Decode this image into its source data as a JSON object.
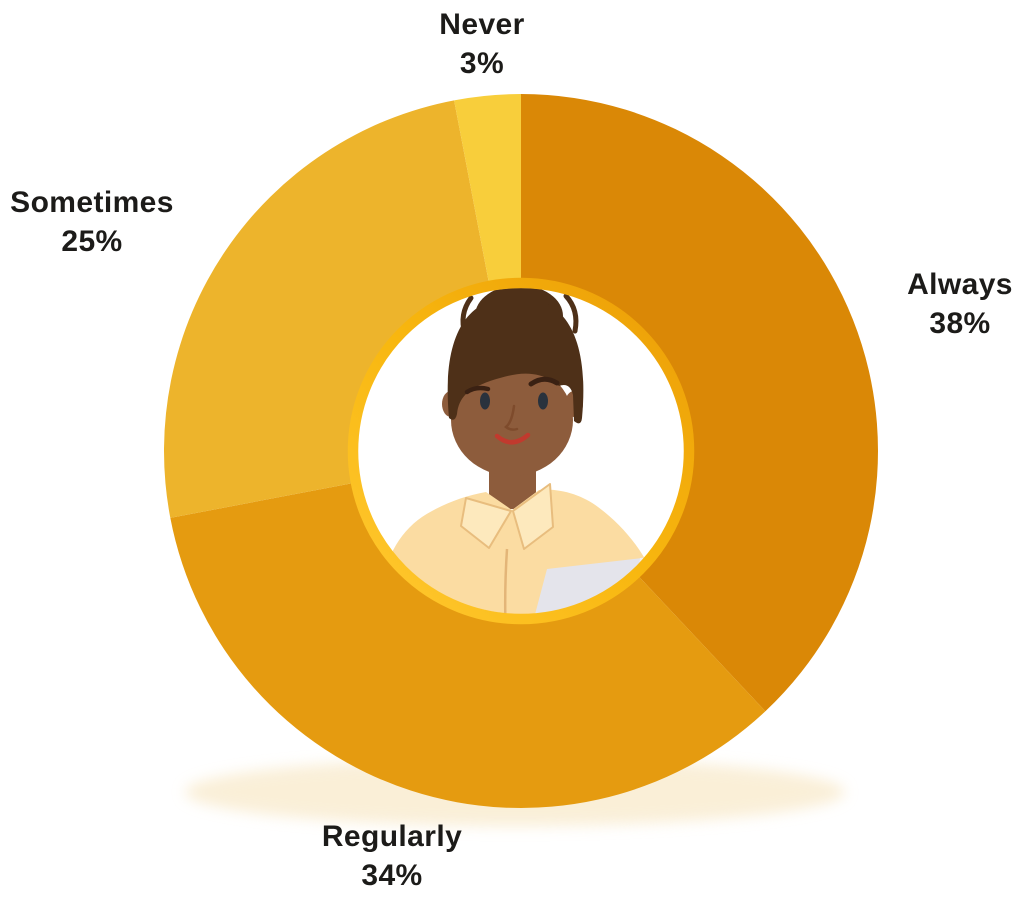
{
  "figure": {
    "name": "survey-frequency-donut-chart",
    "background_color": "#FFFFFF",
    "label_text_color": "#1C1B19"
  },
  "chart_data": {
    "type": "pie",
    "subtype": "donut",
    "unit": "%",
    "start_angle_deg": 0,
    "direction": "clockwise",
    "hole_ratio": 0.47,
    "legend_position": "outside-labels",
    "center_image": "woman-with-bun-avatar",
    "ring_accent_color": "#F7B514",
    "segments": [
      {
        "label": "Always",
        "value": 38,
        "value_label": "38%",
        "color": "#DA8806"
      },
      {
        "label": "Regularly",
        "value": 34,
        "value_label": "34%",
        "color": "#E59B10"
      },
      {
        "label": "Sometimes",
        "value": 25,
        "value_label": "25%",
        "color": "#EDB42C"
      },
      {
        "label": "Never",
        "value": 3,
        "value_label": "3%",
        "color": "#F8CE3B"
      }
    ]
  }
}
